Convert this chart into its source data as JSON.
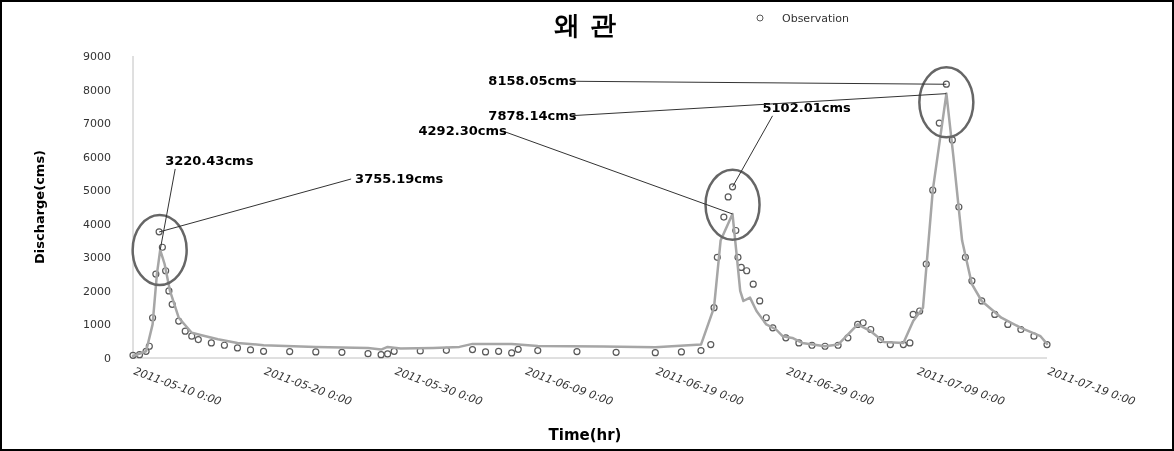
{
  "chart_data": {
    "type": "scatter",
    "title": "왜 관",
    "xlabel": "Time(hr)",
    "ylabel": "Discharge(cms)",
    "xlim": [
      "2011-05-10T00:00",
      "2011-07-19T00:00"
    ],
    "xticks": [
      {
        "value": "2011-05-10",
        "label": "2011-05-10 0:00"
      },
      {
        "value": "2011-05-20",
        "label": "2011-05-20 0:00"
      },
      {
        "value": "2011-05-30",
        "label": "2011-05-30 0:00"
      },
      {
        "value": "2011-06-09",
        "label": "2011-06-09 0:00"
      },
      {
        "value": "2011-06-19",
        "label": "2011-06-19 0:00"
      },
      {
        "value": "2011-06-29",
        "label": "2011-06-29 0:00"
      },
      {
        "value": "2011-07-09",
        "label": "2011-07-09 0:00"
      },
      {
        "value": "2011-07-19",
        "label": "2011-07-19 0:00"
      }
    ],
    "ylim": [
      0,
      9000
    ],
    "yticks": [
      0,
      1000,
      2000,
      3000,
      4000,
      5000,
      6000,
      7000,
      8000,
      9000
    ],
    "grid": false,
    "legend": "top right",
    "series": [
      {
        "name": "Observation",
        "marker": "circle",
        "color": "#595959",
        "x": [
          "2011-05-10T00:00",
          "2011-05-10T12:00",
          "2011-05-11T00:00",
          "2011-05-11T06:00",
          "2011-05-11T12:00",
          "2011-05-11T18:00",
          "2011-05-12T00:00",
          "2011-05-12T06:00",
          "2011-05-12T12:00",
          "2011-05-12T18:00",
          "2011-05-13T00:00",
          "2011-05-13T12:00",
          "2011-05-14T00:00",
          "2011-05-14T12:00",
          "2011-05-15T00:00",
          "2011-05-16T00:00",
          "2011-05-17T00:00",
          "2011-05-18T00:00",
          "2011-05-19T00:00",
          "2011-05-20T00:00",
          "2011-05-22T00:00",
          "2011-05-24T00:00",
          "2011-05-26T00:00",
          "2011-05-28T00:00",
          "2011-05-29T00:00",
          "2011-05-29T12:00",
          "2011-05-30T00:00",
          "2011-06-01T00:00",
          "2011-06-03T00:00",
          "2011-06-05T00:00",
          "2011-06-06T00:00",
          "2011-06-07T00:00",
          "2011-06-08T00:00",
          "2011-06-08T12:00",
          "2011-06-10T00:00",
          "2011-06-13T00:00",
          "2011-06-16T00:00",
          "2011-06-19T00:00",
          "2011-06-21T00:00",
          "2011-06-22T12:00",
          "2011-06-23T06:00",
          "2011-06-23T12:00",
          "2011-06-23T18:00",
          "2011-06-24T06:00",
          "2011-06-24T14:00",
          "2011-06-24T22:00",
          "2011-06-25T04:00",
          "2011-06-25T08:00",
          "2011-06-25T14:00",
          "2011-06-26T00:00",
          "2011-06-26T12:00",
          "2011-06-27T00:00",
          "2011-06-27T12:00",
          "2011-06-28T00:00",
          "2011-06-29T00:00",
          "2011-06-30T00:00",
          "2011-07-01T00:00",
          "2011-07-02T00:00",
          "2011-07-03T00:00",
          "2011-07-03T18:00",
          "2011-07-04T12:00",
          "2011-07-04T22:00",
          "2011-07-05T12:00",
          "2011-07-06T06:00",
          "2011-07-07T00:00",
          "2011-07-08T00:00",
          "2011-07-08T12:00",
          "2011-07-08T18:00",
          "2011-07-09T06:00",
          "2011-07-09T18:00",
          "2011-07-10T06:00",
          "2011-07-10T18:00",
          "2011-07-11T07:00",
          "2011-07-11T18:00",
          "2011-07-12T06:00",
          "2011-07-12T18:00",
          "2011-07-13T06:00",
          "2011-07-14T00:00",
          "2011-07-15T00:00",
          "2011-07-16T00:00",
          "2011-07-17T00:00",
          "2011-07-18T00:00",
          "2011-07-19T00:00"
        ],
        "values": [
          80,
          100,
          200,
          350,
          1200,
          2500,
          3760,
          3300,
          2600,
          2000,
          1600,
          1100,
          800,
          650,
          550,
          450,
          380,
          300,
          240,
          200,
          190,
          180,
          170,
          130,
          100,
          120,
          200,
          210,
          230,
          250,
          180,
          200,
          150,
          260,
          220,
          190,
          170,
          160,
          180,
          220,
          400,
          1500,
          3000,
          4200,
          4800,
          5100,
          3800,
          3000,
          2700,
          2600,
          2200,
          1700,
          1200,
          900,
          600,
          450,
          380,
          350,
          380,
          600,
          1000,
          1050,
          850,
          550,
          400,
          400,
          450,
          1300,
          1400,
          2800,
          5000,
          7000,
          8160,
          6500,
          4500,
          3000,
          2300,
          1700,
          1300,
          1000,
          850,
          650,
          400
        ]
      },
      {
        "type": "line",
        "marker": "none",
        "line_style": "solid",
        "color": "#a6a6a6",
        "x": [
          "2011-05-10T00:00",
          "2011-05-11T00:00",
          "2011-05-11T12:00",
          "2011-05-11T20:00",
          "2011-05-12T02:00",
          "2011-05-12T10:00",
          "2011-05-12T20:00",
          "2011-05-13T12:00",
          "2011-05-14T12:00",
          "2011-05-15T06:00",
          "2011-05-16T12:00",
          "2011-05-18T00:00",
          "2011-05-20T00:00",
          "2011-05-24T00:00",
          "2011-05-28T00:00",
          "2011-05-29T00:00",
          "2011-05-29T12:00",
          "2011-05-30T12:00",
          "2011-06-02T00:00",
          "2011-06-04T00:00",
          "2011-06-05T00:00",
          "2011-06-08T00:00",
          "2011-06-10T00:00",
          "2011-06-15T00:00",
          "2011-06-19T00:00",
          "2011-06-22T12:00",
          "2011-06-23T12:00",
          "2011-06-24T00:00",
          "2011-06-24T22:00",
          "2011-06-25T06:00",
          "2011-06-25T12:00",
          "2011-06-25T18:00",
          "2011-06-26T06:00",
          "2011-06-26T18:00",
          "2011-06-27T12:00",
          "2011-06-28T06:00",
          "2011-06-28T18:00",
          "2011-06-29T12:00",
          "2011-06-30T06:00",
          "2011-07-02T00:00",
          "2011-07-03T00:00",
          "2011-07-04T12:00",
          "2011-07-05T12:00",
          "2011-07-06T12:00",
          "2011-07-08T00:00",
          "2011-07-08T18:00",
          "2011-07-09T12:00",
          "2011-07-10T06:00",
          "2011-07-11T07:00",
          "2011-07-11T20:00",
          "2011-07-12T12:00",
          "2011-07-13T06:00",
          "2011-07-14T00:00",
          "2011-07-15T12:00",
          "2011-07-17T00:00",
          "2011-07-18T12:00",
          "2011-07-19T00:00"
        ],
        "values": [
          60,
          200,
          1000,
          2500,
          3220,
          2800,
          2000,
          1200,
          750,
          680,
          560,
          450,
          380,
          330,
          300,
          250,
          330,
          280,
          300,
          330,
          420,
          420,
          360,
          340,
          320,
          400,
          1500,
          3500,
          4290,
          3000,
          2000,
          1700,
          1800,
          1400,
          1000,
          850,
          650,
          600,
          450,
          350,
          400,
          1000,
          800,
          480,
          450,
          1100,
          1500,
          5000,
          7880,
          6000,
          3500,
          2200,
          1700,
          1200,
          900,
          650,
          420
        ]
      }
    ],
    "annotations": [
      {
        "text": "3220.43cms",
        "x": "2011-05-12T02:00",
        "y": 3220.43
      },
      {
        "text": "3755.19cms",
        "x": "2011-05-12T00:00",
        "y": 3755.19
      },
      {
        "text": "4292.30cms",
        "x": "2011-06-24T22:00",
        "y": 4292.3
      },
      {
        "text": "5102.01cms",
        "x": "2011-06-24T22:00",
        "y": 5102.01
      },
      {
        "text": "8158.05cms",
        "x": "2011-07-11T07:00",
        "y": 8158.05
      },
      {
        "text": "7878.14cms",
        "x": "2011-07-11T07:00",
        "y": 7878.14
      }
    ]
  }
}
